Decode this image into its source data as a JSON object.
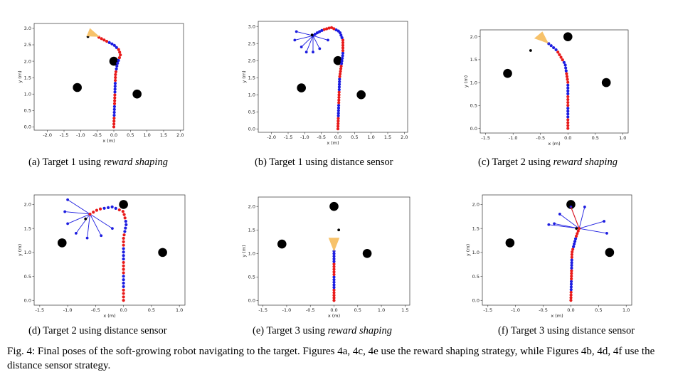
{
  "colors": {
    "red": "#e81a1a",
    "blue": "#1c1ce0",
    "cone": "#f7c26a",
    "obstacle": "#000000"
  },
  "figure_caption": "Fig. 4: Final poses of the soft-growing robot navigating to the target. Figures 4a, 4c, 4e use the reward shaping strategy, while Figures 4b, 4d, 4f use the distance sensor strategy.",
  "chart_data": [
    {
      "id": "a",
      "type": "scatter",
      "caption_prefix": "(a) Target 1 using ",
      "caption_italic": "reward shaping",
      "caption_suffix": "",
      "xlabel": "x (m)",
      "ylabel": "y (m)",
      "xlim": [
        -2.4,
        2.1
      ],
      "ylim": [
        -0.1,
        3.15
      ],
      "xticks": [
        -2.0,
        -1.5,
        -1.0,
        -0.5,
        0.0,
        0.5,
        1.0,
        1.5,
        2.0
      ],
      "yticks": [
        0.0,
        0.5,
        1.0,
        1.5,
        2.0,
        2.5,
        3.0
      ],
      "obstacles": [
        [
          -1.1,
          1.2
        ],
        [
          0.0,
          2.0
        ],
        [
          0.7,
          1.0
        ]
      ],
      "target": [
        -0.78,
        2.75
      ],
      "path": [
        [
          0.0,
          0.0
        ],
        [
          0.05,
          1.6
        ],
        [
          0.1,
          1.9
        ],
        [
          0.2,
          2.2
        ],
        [
          0.15,
          2.35
        ],
        [
          0.0,
          2.5
        ],
        [
          -0.3,
          2.65
        ],
        [
          -0.45,
          2.73
        ]
      ],
      "segments": [
        "red",
        "blue",
        "red",
        "blue",
        "red",
        "blue",
        "red",
        "blue",
        "red"
      ],
      "pts_per_seg": 4,
      "cone": {
        "tip": [
          -0.44,
          2.75
        ],
        "dir": 158,
        "len": 0.35,
        "width": 0.25
      },
      "sensor": null
    },
    {
      "id": "b",
      "type": "scatter",
      "caption_prefix": "(b) Target 1 using distance sensor",
      "caption_italic": "",
      "caption_suffix": "",
      "xlabel": "x (m)",
      "ylabel": "y (m)",
      "xlim": [
        -2.4,
        2.1
      ],
      "ylim": [
        -0.1,
        3.15
      ],
      "xticks": [
        -2.0,
        -1.5,
        -1.0,
        -0.5,
        0.0,
        0.5,
        1.0,
        1.5,
        2.0
      ],
      "yticks": [
        0.0,
        0.5,
        1.0,
        1.5,
        2.0,
        2.5,
        3.0
      ],
      "obstacles": [
        [
          -1.1,
          1.2
        ],
        [
          0.0,
          2.0
        ],
        [
          0.7,
          1.0
        ]
      ],
      "target": [
        -0.78,
        2.75
      ],
      "path": [
        [
          0.0,
          0.0
        ],
        [
          0.05,
          1.5
        ],
        [
          0.15,
          2.2
        ],
        [
          0.15,
          2.6
        ],
        [
          0.05,
          2.85
        ],
        [
          -0.2,
          2.97
        ],
        [
          -0.45,
          2.9
        ],
        [
          -0.65,
          2.8
        ],
        [
          -0.75,
          2.73
        ]
      ],
      "segments": [
        "red",
        "blue",
        "red",
        "blue",
        "red",
        "blue",
        "red",
        "blue",
        "red",
        "blue"
      ],
      "pts_per_seg": 5,
      "cone": null,
      "sensor": {
        "origin": [
          -0.75,
          2.73
        ],
        "rays": [
          [
            -1.25,
            2.85
          ],
          [
            -1.3,
            2.6
          ],
          [
            -1.1,
            2.4
          ],
          [
            -0.95,
            2.25
          ],
          [
            -0.75,
            2.25
          ],
          [
            -0.55,
            2.35
          ],
          [
            -0.3,
            2.6
          ]
        ]
      }
    },
    {
      "id": "c",
      "type": "scatter",
      "caption_prefix": "(c) Target 2 using ",
      "caption_italic": "reward shaping",
      "caption_suffix": "",
      "xlabel": "x (m)",
      "ylabel": "y (m)",
      "xlim": [
        -1.6,
        1.1
      ],
      "ylim": [
        -0.1,
        2.15
      ],
      "xticks": [
        -1.5,
        -1.0,
        -0.5,
        0.0,
        0.5,
        1.0
      ],
      "yticks": [
        0.0,
        0.5,
        1.0,
        1.5,
        2.0
      ],
      "obstacles": [
        [
          -1.1,
          1.2
        ],
        [
          0.0,
          2.0
        ],
        [
          0.7,
          1.0
        ]
      ],
      "target": [
        -0.68,
        1.7
      ],
      "path": [
        [
          0.0,
          0.0
        ],
        [
          0.0,
          1.0
        ],
        [
          -0.05,
          1.4
        ],
        [
          -0.2,
          1.7
        ],
        [
          -0.35,
          1.85
        ]
      ],
      "segments": [
        "red",
        "blue",
        "red",
        "blue",
        "red",
        "blue",
        "red",
        "blue"
      ],
      "pts_per_seg": 4,
      "cone": {
        "tip": [
          -0.36,
          1.86
        ],
        "dir": 135,
        "len": 0.25,
        "width": 0.2
      },
      "sensor": null
    },
    {
      "id": "d",
      "type": "scatter",
      "caption_prefix": "(d) Target 2 using distance sensor",
      "caption_italic": "",
      "caption_suffix": "",
      "xlabel": "x (m)",
      "ylabel": "y (m)",
      "xlim": [
        -1.6,
        1.1
      ],
      "ylim": [
        -0.1,
        2.2
      ],
      "xticks": [
        -1.5,
        -1.0,
        -0.5,
        0.0,
        0.5,
        1.0
      ],
      "yticks": [
        0.0,
        0.5,
        1.0,
        1.5,
        2.0
      ],
      "obstacles": [
        [
          -1.1,
          1.2
        ],
        [
          0.0,
          2.0
        ],
        [
          0.7,
          1.0
        ]
      ],
      "target": [
        -0.68,
        1.7
      ],
      "path": [
        [
          0.0,
          0.0
        ],
        [
          0.0,
          1.3
        ],
        [
          0.05,
          1.6
        ],
        [
          0.0,
          1.85
        ],
        [
          -0.2,
          1.95
        ],
        [
          -0.45,
          1.9
        ],
        [
          -0.6,
          1.8
        ]
      ],
      "segments": [
        "red",
        "blue",
        "red",
        "blue",
        "red",
        "blue",
        "red",
        "blue",
        "red"
      ],
      "pts_per_seg": 4,
      "cone": null,
      "sensor": {
        "origin": [
          -0.6,
          1.8
        ],
        "rays": [
          [
            -1.0,
            2.1
          ],
          [
            -1.05,
            1.85
          ],
          [
            -1.0,
            1.6
          ],
          [
            -0.85,
            1.4
          ],
          [
            -0.65,
            1.3
          ],
          [
            -0.4,
            1.35
          ],
          [
            -0.2,
            1.5
          ]
        ]
      }
    },
    {
      "id": "e",
      "type": "scatter",
      "caption_prefix": "(e) Target 3 using ",
      "caption_italic": "reward shaping",
      "caption_suffix": "",
      "xlabel": "x (m)",
      "ylabel": "y (m)",
      "xlim": [
        -1.6,
        1.6
      ],
      "ylim": [
        -0.1,
        2.2
      ],
      "xticks": [
        -1.5,
        -1.0,
        -0.5,
        0.0,
        0.5,
        1.0,
        1.5
      ],
      "yticks": [
        0.0,
        0.5,
        1.0,
        1.5,
        2.0
      ],
      "obstacles": [
        [
          -1.1,
          1.2
        ],
        [
          0.0,
          2.0
        ],
        [
          0.7,
          1.0
        ]
      ],
      "target": [
        0.1,
        1.5
      ],
      "path": [
        [
          0.0,
          0.0
        ],
        [
          0.0,
          1.05
        ]
      ],
      "segments": [
        "red",
        "blue",
        "red",
        "blue"
      ],
      "pts_per_seg": 5,
      "cone": {
        "tip": [
          0.0,
          1.05
        ],
        "dir": 90,
        "len": 0.28,
        "width": 0.22
      },
      "sensor": null
    },
    {
      "id": "f",
      "type": "scatter",
      "caption_prefix": "(f) Target 3 using distance sensor",
      "caption_italic": "",
      "caption_suffix": "",
      "xlabel": "x (m)",
      "ylabel": "y (m)",
      "xlim": [
        -1.6,
        1.1
      ],
      "ylim": [
        -0.1,
        2.2
      ],
      "xticks": [
        -1.5,
        -1.0,
        -0.5,
        0.0,
        0.5,
        1.0
      ],
      "yticks": [
        0.0,
        0.5,
        1.0,
        1.5,
        2.0
      ],
      "obstacles": [
        [
          -1.1,
          1.2
        ],
        [
          0.0,
          2.0
        ],
        [
          0.7,
          1.0
        ]
      ],
      "target": [
        0.1,
        1.5
      ],
      "path": [
        [
          0.0,
          0.0
        ],
        [
          0.02,
          1.0
        ],
        [
          0.1,
          1.35
        ],
        [
          0.15,
          1.5
        ]
      ],
      "segments": [
        "red",
        "blue",
        "red",
        "blue",
        "red",
        "blue",
        "red"
      ],
      "pts_per_seg": 4,
      "cone": null,
      "sensor": {
        "origin": [
          0.15,
          1.5
        ],
        "rays": [
          [
            0.0,
            1.95
          ],
          [
            0.25,
            1.95
          ],
          [
            0.6,
            1.65
          ],
          [
            0.65,
            1.4
          ],
          [
            -0.3,
            1.6
          ],
          [
            -0.2,
            1.8
          ],
          [
            -0.4,
            1.58
          ]
        ],
        "hit_ray": [
          [
            0.15,
            1.5
          ],
          [
            0.0,
            1.95
          ]
        ]
      }
    }
  ]
}
